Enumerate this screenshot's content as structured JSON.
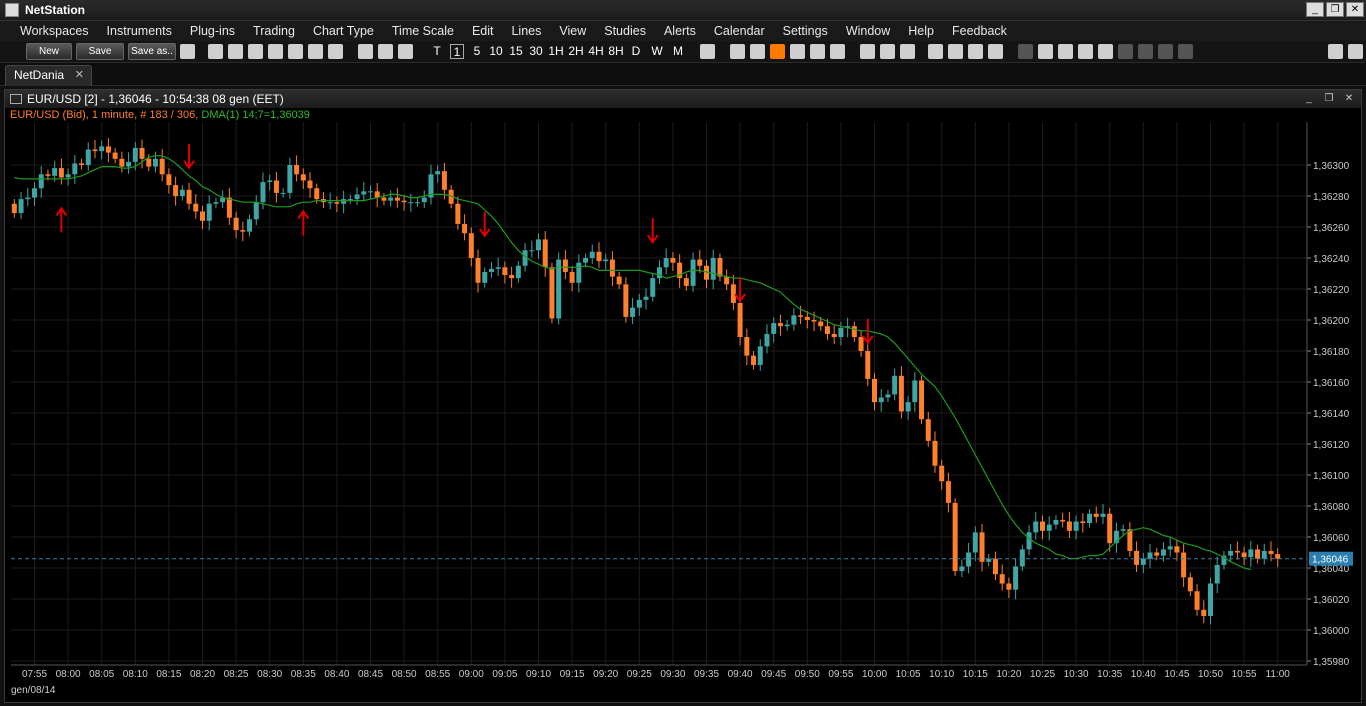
{
  "app": {
    "title": "NetStation"
  },
  "window_controls": [
    "_",
    "❐",
    "✕"
  ],
  "menu": [
    "Workspaces",
    "Instruments",
    "Plug-ins",
    "Trading",
    "Chart Type",
    "Time Scale",
    "Edit",
    "Lines",
    "View",
    "Studies",
    "Alerts",
    "Calendar",
    "Settings",
    "Window",
    "Help",
    "Feedback"
  ],
  "toolbar": {
    "new_label": "New",
    "save_label": "Save",
    "saveas_label": "Save as..",
    "timeframes": [
      "T",
      "1",
      "5",
      "10",
      "15",
      "30",
      "1H",
      "2H",
      "4H",
      "8H",
      "D",
      "W",
      "M"
    ]
  },
  "tabs": [
    {
      "label": "NetDania",
      "close": "✕"
    }
  ],
  "chart_window": {
    "title": "EUR/USD [2] - 1,36046 - 10:54:38  08 gen (EET)",
    "info_main": "EUR/USD (Bid), 1 minute, # 183 / 306",
    "info_dma": "DMA(1) 14;7=1,36039",
    "date_label": "gen/08/14",
    "last_price": "1,36046",
    "controls": [
      "_",
      "❐",
      "✕"
    ]
  },
  "colors": {
    "bull": "#3fa5a5",
    "bear": "#ff7f2a",
    "ma": "#1e9a1e",
    "arrow": "#e00000",
    "grid": "#1c1c1c",
    "info_main": "#ff7f2a",
    "info_dma": "#2db92d"
  },
  "chart_data": {
    "type": "candlestick",
    "symbol": "EUR/USD",
    "interval": "1 minute",
    "y_ticks": [
      "1,36300",
      "1,36280",
      "1,36260",
      "1,36240",
      "1,36220",
      "1,36200",
      "1,36180",
      "1,36160",
      "1,36140",
      "1,36120",
      "1,36100",
      "1,36080",
      "1,36060",
      "1,36040",
      "1,36020",
      "1,36000",
      "1,35980"
    ],
    "x_ticks": [
      "07:55",
      "08:00",
      "08:05",
      "08:10",
      "08:15",
      "08:20",
      "08:25",
      "08:30",
      "08:35",
      "08:40",
      "08:45",
      "08:50",
      "08:55",
      "09:00",
      "09:05",
      "09:10",
      "09:15",
      "09:20",
      "09:25",
      "09:30",
      "09:35",
      "09:40",
      "09:45",
      "09:50",
      "09:55",
      "10:00",
      "10:05",
      "10:10",
      "10:15",
      "10:20",
      "10:25",
      "10:30",
      "10:35",
      "10:40",
      "10:45",
      "10:50",
      "10:55",
      "11:00"
    ],
    "ylim": [
      1.35982,
      1.36312
    ],
    "series": [
      {
        "name": "close",
        "time_start": "07:52",
        "values": [
          1.36269,
          1.36278,
          1.36279,
          1.36285,
          1.36294,
          1.36293,
          1.36298,
          1.36292,
          1.36294,
          1.36301,
          1.363,
          1.3631,
          1.36309,
          1.36312,
          1.36308,
          1.36304,
          1.36299,
          1.36302,
          1.36311,
          1.36304,
          1.36299,
          1.36304,
          1.36294,
          1.36287,
          1.3628,
          1.36284,
          1.36275,
          1.3627,
          1.36264,
          1.36275,
          1.36276,
          1.36279,
          1.36266,
          1.36258,
          1.36257,
          1.36265,
          1.36276,
          1.36289,
          1.3629,
          1.36282,
          1.36282,
          1.363,
          1.36294,
          1.3629,
          1.36285,
          1.36278,
          1.36276,
          1.36276,
          1.36275,
          1.36278,
          1.36278,
          1.36281,
          1.36283,
          1.36283,
          1.36279,
          1.36277,
          1.36279,
          1.36277,
          1.36276,
          1.36276,
          1.36276,
          1.36279,
          1.36294,
          1.36296,
          1.36284,
          1.36275,
          1.36262,
          1.36256,
          1.3624,
          1.36224,
          1.36231,
          1.36233,
          1.36234,
          1.36229,
          1.36227,
          1.36235,
          1.36245,
          1.36245,
          1.36252,
          1.36234,
          1.36201,
          1.36239,
          1.36231,
          1.36224,
          1.36237,
          1.3624,
          1.36244,
          1.36238,
          1.36239,
          1.36228,
          1.36223,
          1.36202,
          1.36208,
          1.36213,
          1.36215,
          1.36227,
          1.36234,
          1.3624,
          1.36237,
          1.36227,
          1.36222,
          1.36239,
          1.36235,
          1.36226,
          1.3624,
          1.36228,
          1.36223,
          1.36211,
          1.36189,
          1.36177,
          1.36171,
          1.36183,
          1.36191,
          1.36198,
          1.36196,
          1.36197,
          1.36203,
          1.36202,
          1.362,
          1.36199,
          1.36196,
          1.36191,
          1.36189,
          1.36195,
          1.36196,
          1.36189,
          1.3618,
          1.36162,
          1.36147,
          1.3615,
          1.36152,
          1.36164,
          1.36141,
          1.36147,
          1.36161,
          1.36136,
          1.36122,
          1.36106,
          1.36096,
          1.36082,
          1.36038,
          1.36041,
          1.3605,
          1.36063,
          1.36044,
          1.36046,
          1.36036,
          1.3603,
          1.36026,
          1.36041,
          1.36052,
          1.36063,
          1.3607,
          1.36064,
          1.36068,
          1.36071,
          1.3607,
          1.36064,
          1.3607,
          1.36069,
          1.36075,
          1.36073,
          1.36075,
          1.36056,
          1.36064,
          1.36065,
          1.36051,
          1.36042,
          1.36046,
          1.3605,
          1.36048,
          1.36052,
          1.36054,
          1.3605,
          1.36034,
          1.36025,
          1.36013,
          1.36009,
          1.3603,
          1.36042,
          1.36048,
          1.36051,
          1.3605,
          1.36047,
          1.36052,
          1.36046,
          1.36051,
          1.36049,
          1.36046
        ]
      },
      {
        "name": "DMA(1) 14;7",
        "time_start": "07:52",
        "values": [
          1.36292,
          1.36291,
          1.36291,
          1.36291,
          1.36291,
          1.36291,
          1.36291,
          1.36291,
          1.36291,
          1.36292,
          1.36293,
          1.36295,
          1.36297,
          1.36299,
          1.36299,
          1.36299,
          1.36298,
          1.36298,
          1.36299,
          1.36302,
          1.36305,
          1.36306,
          1.36306,
          1.36304,
          1.36301,
          1.36297,
          1.36293,
          1.3629,
          1.36286,
          1.36284,
          1.36281,
          1.36279,
          1.36278,
          1.36277,
          1.36276,
          1.36276,
          1.36276,
          1.36275,
          1.36274,
          1.36273,
          1.36273,
          1.36273,
          1.36275,
          1.36276,
          1.36276,
          1.36277,
          1.36277,
          1.36277,
          1.36277,
          1.36277,
          1.36277,
          1.36277,
          1.36277,
          1.36278,
          1.36279,
          1.3628,
          1.36281,
          1.36281,
          1.3628,
          1.36279,
          1.36279,
          1.3628,
          1.36281,
          1.36281,
          1.36281,
          1.3628,
          1.36278,
          1.36277,
          1.36276,
          1.36275,
          1.36271,
          1.36267,
          1.36262,
          1.36256,
          1.3625,
          1.36245,
          1.36241,
          1.36238,
          1.36236,
          1.36234,
          1.36233,
          1.36234,
          1.36234,
          1.36234,
          1.36234,
          1.36235,
          1.36234,
          1.36232,
          1.36232,
          1.36232,
          1.36232,
          1.36232,
          1.36232,
          1.36232,
          1.36231,
          1.3623,
          1.36229,
          1.36227,
          1.36228,
          1.36229,
          1.36231,
          1.36232,
          1.36232,
          1.36231,
          1.3623,
          1.36229,
          1.36228,
          1.36227,
          1.36227,
          1.36226,
          1.36225,
          1.36224,
          1.36222,
          1.3622,
          1.36218,
          1.36214,
          1.3621,
          1.36207,
          1.36205,
          1.36203,
          1.36201,
          1.36199,
          1.36197,
          1.36196,
          1.36195,
          1.36194,
          1.36193,
          1.36193,
          1.36192,
          1.36191,
          1.36189,
          1.36185,
          1.3618,
          1.36175,
          1.3617,
          1.36165,
          1.36161,
          1.36157,
          1.36151,
          1.36144,
          1.36137,
          1.36129,
          1.36121,
          1.36113,
          1.36105,
          1.36097,
          1.36089,
          1.36081,
          1.36074,
          1.36068,
          1.36063,
          1.36059,
          1.36056,
          1.36054,
          1.36052,
          1.36049,
          1.36048,
          1.36046,
          1.36046,
          1.36047,
          1.36048,
          1.36048,
          1.36049,
          1.36053,
          1.36057,
          1.36061,
          1.36064,
          1.36065,
          1.36066,
          1.36065,
          1.36063,
          1.36061,
          1.3606,
          1.36058,
          1.36056,
          1.36055,
          1.36054,
          1.36052,
          1.36051,
          1.36049,
          1.36047,
          1.36044,
          1.36042,
          1.3604,
          1.36039
        ]
      }
    ],
    "markers": [
      {
        "time": "07:59",
        "type": "up-arrow"
      },
      {
        "time": "08:18",
        "type": "down-arrow"
      },
      {
        "time": "08:35",
        "type": "up-arrow"
      },
      {
        "time": "09:02",
        "type": "down-arrow"
      },
      {
        "time": "09:27",
        "type": "down-arrow"
      },
      {
        "time": "09:40",
        "type": "down-arrow"
      },
      {
        "time": "09:59",
        "type": "down-arrow"
      }
    ]
  }
}
